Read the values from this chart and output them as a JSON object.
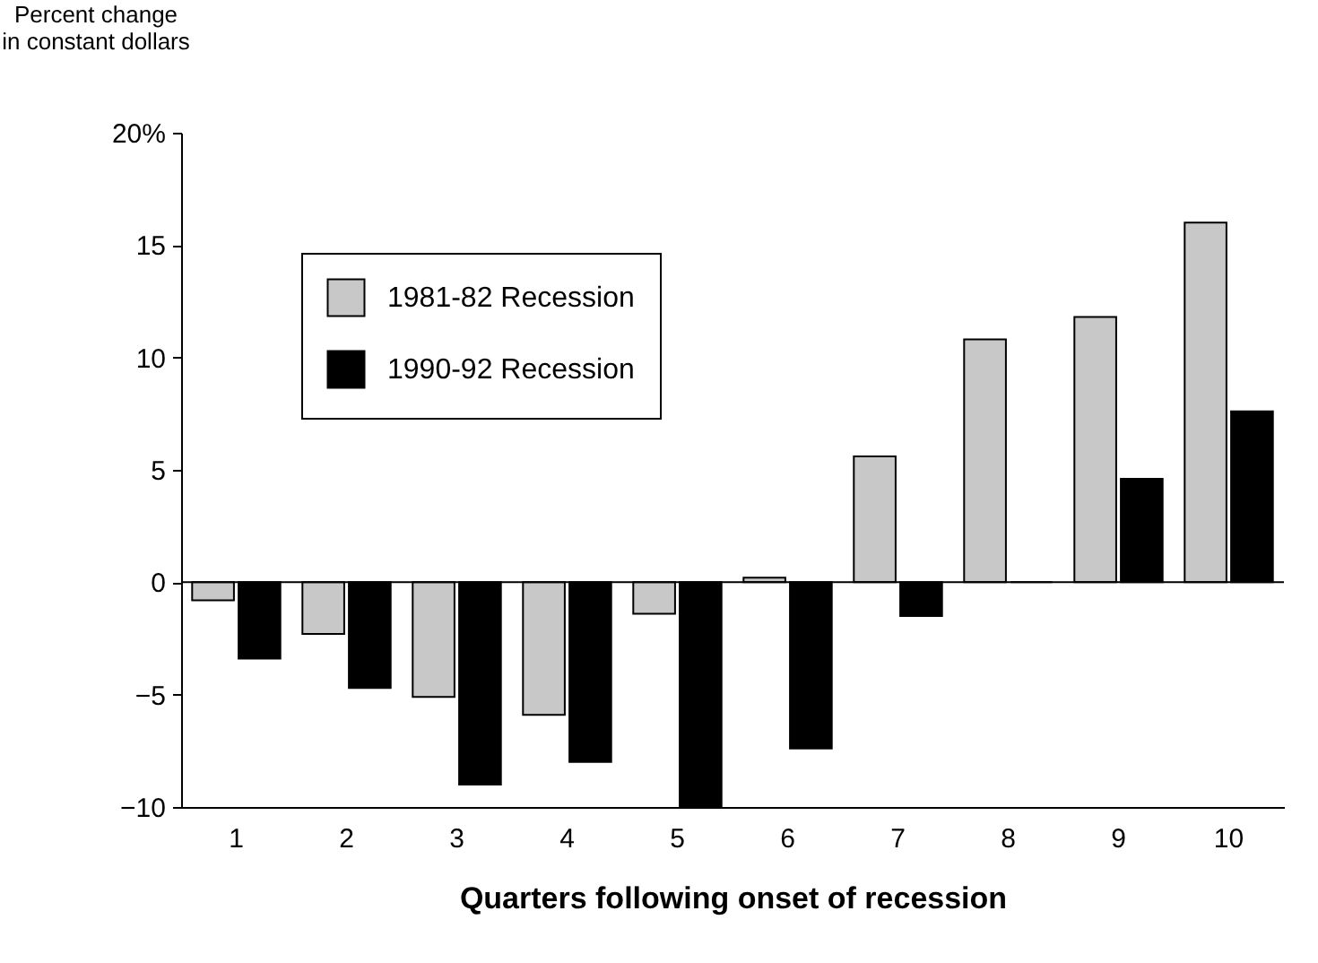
{
  "chart_data": {
    "type": "bar",
    "xlabel": "Quarters following onset of recession",
    "ylabel": "Percent change\nin constant dollars",
    "categories": [
      "1",
      "2",
      "3",
      "4",
      "5",
      "6",
      "7",
      "8",
      "9",
      "10"
    ],
    "series": [
      {
        "name": "1981-82 Recession",
        "color": "#c8c8c8",
        "values": [
          -0.8,
          -2.3,
          -5.1,
          -5.9,
          -1.4,
          0.2,
          5.6,
          10.8,
          11.8,
          16
        ]
      },
      {
        "name": "1990-92 Recession",
        "color": "#000000",
        "values": [
          -3.4,
          -4.7,
          -9,
          -8,
          -10,
          -7.4,
          -1.5,
          0,
          4.6,
          7.6
        ]
      }
    ],
    "ylim": [
      -10,
      20
    ],
    "yticks": [
      -10,
      -5,
      0,
      5,
      10,
      15,
      {
        "value": 20,
        "label": "20%"
      }
    ],
    "ref_lines": [
      {
        "axis": "y",
        "value": 0,
        "color": "#000000"
      }
    ],
    "grid": false,
    "legend": "top left"
  }
}
